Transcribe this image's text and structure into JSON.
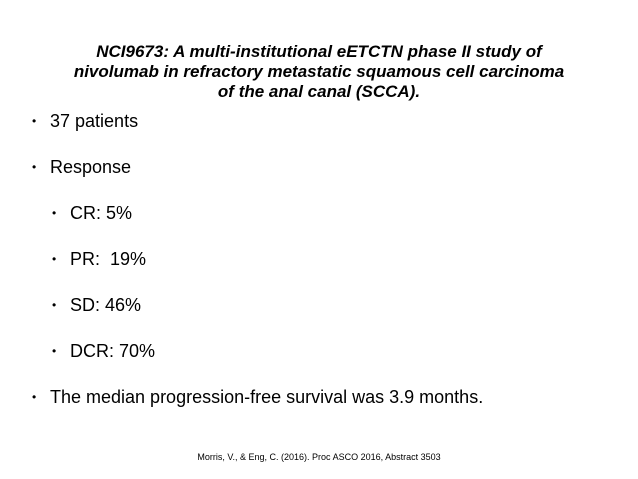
{
  "title": {
    "line1": "NCI9673: A multi-institutional eETCTN phase II study of",
    "line2": "nivolumab in refractory metastatic squamous cell carcinoma",
    "line3": "of the anal canal (SCCA)."
  },
  "bullets": {
    "patients": "37 patients",
    "response": "Response",
    "cr": "CR: 5%",
    "pr": "PR:  19%",
    "sd": "SD: 46%",
    "dcr": "DCR: 70%",
    "pfs": "The median progression-free survival was 3.9 months."
  },
  "bullet_glyph": "•",
  "citation": "Morris, V., & Eng, C. (2016). Proc ASCO 2016, Abstract 3503"
}
